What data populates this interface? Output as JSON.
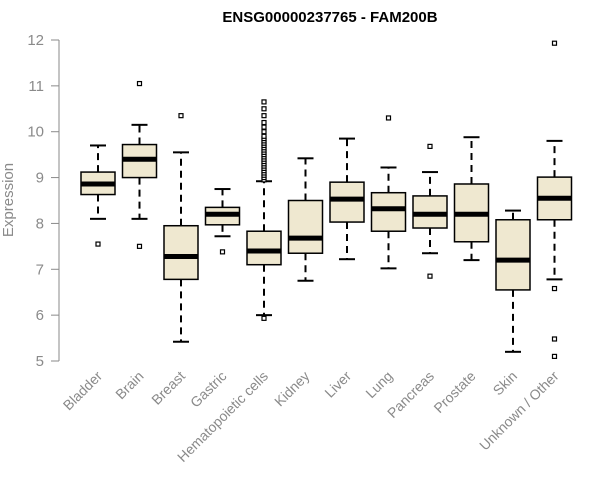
{
  "chart_data": {
    "type": "boxplot",
    "title": "ENSG00000237765 - FAM200B",
    "xlabel": "",
    "ylabel": "Expression",
    "ylim": [
      5,
      12
    ],
    "yticks": [
      5,
      6,
      7,
      8,
      9,
      10,
      11,
      12
    ],
    "box_fill": "#efe8d0",
    "categories": [
      "Bladder",
      "Brain",
      "Breast",
      "Gastric",
      "Hematopoietic cells",
      "Kidney",
      "Liver",
      "Lung",
      "Pancreas",
      "Prostate",
      "Skin",
      "Unknown / Other"
    ],
    "boxes": [
      {
        "whisker_low": 8.1,
        "q1": 8.63,
        "median": 8.86,
        "q3": 9.12,
        "whisker_high": 9.7,
        "outliers": [
          7.55
        ]
      },
      {
        "whisker_low": 8.1,
        "q1": 9.0,
        "median": 9.4,
        "q3": 9.72,
        "whisker_high": 10.15,
        "outliers": [
          7.5,
          11.05
        ]
      },
      {
        "whisker_low": 5.42,
        "q1": 6.78,
        "median": 7.28,
        "q3": 7.95,
        "whisker_high": 9.55,
        "outliers": [
          10.35
        ]
      },
      {
        "whisker_low": 7.72,
        "q1": 7.97,
        "median": 8.2,
        "q3": 8.35,
        "whisker_high": 8.75,
        "outliers": [
          7.38
        ]
      },
      {
        "whisker_low": 6.0,
        "q1": 7.1,
        "median": 7.4,
        "q3": 7.83,
        "whisker_high": 8.92,
        "outliers": [
          5.93,
          8.95,
          9.0,
          9.05,
          9.1,
          9.15,
          9.2,
          9.25,
          9.3,
          9.35,
          9.4,
          9.45,
          9.5,
          9.55,
          9.6,
          9.65,
          9.7,
          9.75,
          9.8,
          9.85,
          9.9,
          10.0,
          10.1,
          10.2,
          10.35,
          10.5,
          10.65
        ]
      },
      {
        "whisker_low": 6.75,
        "q1": 7.35,
        "median": 7.68,
        "q3": 8.5,
        "whisker_high": 9.42,
        "outliers": []
      },
      {
        "whisker_low": 7.22,
        "q1": 8.03,
        "median": 8.53,
        "q3": 8.9,
        "whisker_high": 9.85,
        "outliers": []
      },
      {
        "whisker_low": 7.02,
        "q1": 7.83,
        "median": 8.32,
        "q3": 8.67,
        "whisker_high": 9.22,
        "outliers": [
          10.3
        ]
      },
      {
        "whisker_low": 7.35,
        "q1": 7.9,
        "median": 8.2,
        "q3": 8.6,
        "whisker_high": 9.12,
        "outliers": [
          6.85,
          9.68
        ]
      },
      {
        "whisker_low": 7.2,
        "q1": 7.6,
        "median": 8.2,
        "q3": 8.86,
        "whisker_high": 9.88,
        "outliers": []
      },
      {
        "whisker_low": 5.2,
        "q1": 6.55,
        "median": 7.2,
        "q3": 8.08,
        "whisker_high": 8.28,
        "outliers": []
      },
      {
        "whisker_low": 6.78,
        "q1": 8.08,
        "median": 8.55,
        "q3": 9.01,
        "whisker_high": 9.8,
        "outliers": [
          5.1,
          5.48,
          6.58,
          11.93
        ]
      }
    ]
  }
}
